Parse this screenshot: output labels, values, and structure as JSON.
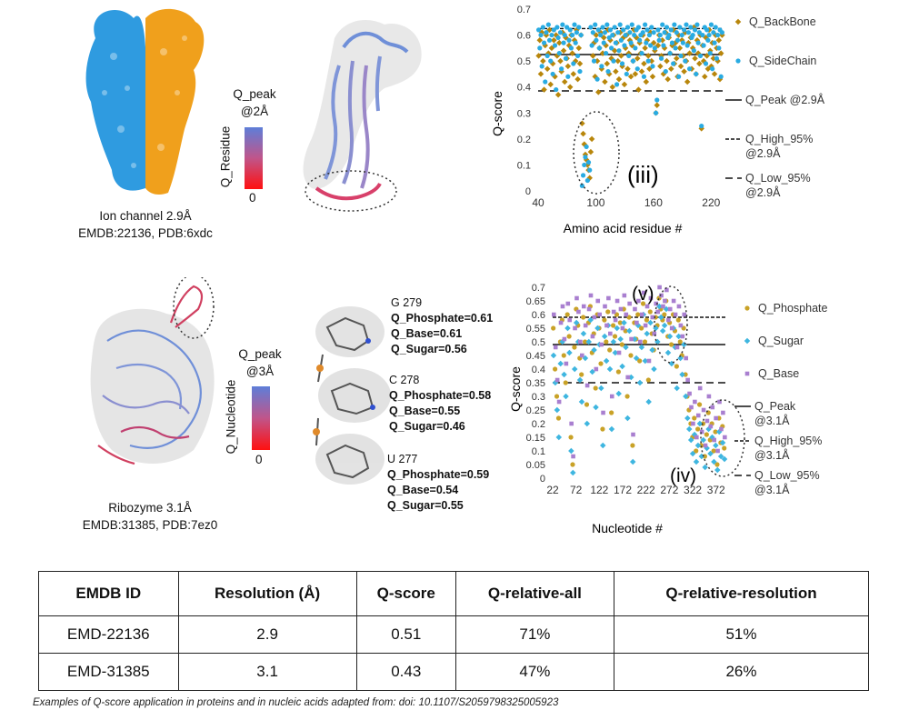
{
  "protein": {
    "caption_line1": "Ion channel 2.9Å",
    "caption_line2": "EMDB:22136, PDB:6xdc",
    "colorbar": {
      "title_line1": "Q_peak",
      "title_line2": "@2Å",
      "side_label": "Q_Residue",
      "min_label": "0"
    },
    "colors": {
      "chain_a": "#2f9be0",
      "chain_b": "#f0a01c"
    }
  },
  "rna": {
    "caption_line1": "Ribozyme 3.1Å",
    "caption_line2": "EMDB:31385, PDB:7ez0",
    "colorbar": {
      "title_line1": "Q_peak",
      "title_line2": "@3Å",
      "side_label": "Q_Nucleotide",
      "min_label": "0"
    },
    "nucleotides": [
      {
        "name": "G 279",
        "phosphate": "Q_Phosphate=0.61",
        "base": "Q_Base=0.61",
        "sugar": "Q_Sugar=0.56"
      },
      {
        "name": "C 278",
        "phosphate": "Q_Phosphate=0.58",
        "base": "Q_Base=0.55",
        "sugar": "Q_Sugar=0.46"
      },
      {
        "name": "U 277",
        "phosphate": "Q_Phosphate=0.59",
        "base": "Q_Base=0.54",
        "sugar": "Q_Sugar=0.55"
      }
    ]
  },
  "chart_data": [
    {
      "type": "scatter",
      "xlabel": "Amino acid residue #",
      "ylabel": "Q-score",
      "xlim": [
        40,
        232
      ],
      "ylim": [
        0,
        0.7
      ],
      "xticks": [
        40,
        100,
        160,
        220
      ],
      "yticks": [
        0,
        0.1,
        0.2,
        0.3,
        0.4,
        0.5,
        0.6,
        0.7
      ],
      "annotation": "(iii)",
      "legend_position": "right",
      "series": [
        {
          "name": "Q_BackBone",
          "color": "#b8860b",
          "marker": "diamond",
          "values": [
            0.52,
            0.58,
            0.45,
            0.61,
            0.5,
            0.39,
            0.56,
            0.6,
            0.47,
            0.53,
            0.62,
            0.41,
            0.55,
            0.49,
            0.58,
            0.44,
            0.6,
            0.52,
            0.37,
            0.57,
            0.5,
            0.46,
            0.61,
            0.54,
            0.42,
            0.59,
            0.51,
            0.48,
            0.56,
            0.4,
            0.6,
            0.53,
            0.45,
            0.58,
            0.5,
            0.62,
            0.43,
            0.55,
            0.49,
            0.6,
            0.26,
            0.22,
            0.18,
            0.14,
            0.12,
            0.1,
            0.08,
            0.05,
            0.15,
            0.2,
            0.52,
            0.57,
            0.44,
            0.6,
            0.5,
            0.38,
            0.55,
            0.61,
            0.47,
            0.53,
            0.59,
            0.42,
            0.56,
            0.49,
            0.62,
            0.45,
            0.58,
            0.51,
            0.4,
            0.6,
            0.54,
            0.46,
            0.57,
            0.5,
            0.43,
            0.61,
            0.52,
            0.48,
            0.59,
            0.41,
            0.55,
            0.6,
            0.47,
            0.53,
            0.58,
            0.44,
            0.56,
            0.5,
            0.62,
            0.45,
            0.59,
            0.51,
            0.39,
            0.57,
            0.53,
            0.46,
            0.6,
            0.49,
            0.55,
            0.42,
            0.58,
            0.52,
            0.47,
            0.61,
            0.5,
            0.44,
            0.57,
            0.54,
            0.3,
            0.33,
            0.56,
            0.6,
            0.48,
            0.52,
            0.58,
            0.45,
            0.55,
            0.61,
            0.5,
            0.43,
            0.59,
            0.53,
            0.47,
            0.56,
            0.62,
            0.49,
            0.57,
            0.51,
            0.44,
            0.6,
            0.55,
            0.48,
            0.58,
            0.52,
            0.46,
            0.61,
            0.5,
            0.42,
            0.57,
            0.53,
            0.59,
            0.47,
            0.55,
            0.63,
            0.51,
            0.45,
            0.58,
            0.53,
            0.49,
            0.6,
            0.24,
            0.56,
            0.5,
            0.44,
            0.59,
            0.52,
            0.47,
            0.62,
            0.54,
            0.48,
            0.57,
            0.51,
            0.45,
            0.6,
            0.55,
            0.5,
            0.58,
            0.43,
            0.53,
            0.6
          ]
        },
        {
          "name": "Q_SideChain",
          "color": "#29abe2",
          "marker": "circle",
          "values": [
            0.62,
            0.55,
            0.6,
            0.48,
            0.63,
            0.57,
            0.42,
            0.61,
            0.52,
            0.64,
            0.58,
            0.5,
            0.6,
            0.45,
            0.62,
            0.56,
            0.39,
            0.63,
            0.59,
            0.53,
            0.61,
            0.47,
            0.64,
            0.57,
            0.6,
            0.51,
            0.63,
            0.44,
            0.58,
            0.62,
            0.55,
            0.6,
            0.49,
            0.64,
            0.57,
            0.61,
            0.52,
            0.63,
            0.46,
            0.6,
            0.02,
            0.06,
            0.1,
            0.13,
            0.17,
            0.04,
            0.11,
            0.08,
            0.63,
            0.56,
            0.61,
            0.5,
            0.64,
            0.58,
            0.43,
            0.62,
            0.55,
            0.6,
            0.48,
            0.63,
            0.57,
            0.61,
            0.53,
            0.64,
            0.46,
            0.59,
            0.62,
            0.55,
            0.6,
            0.5,
            0.63,
            0.57,
            0.41,
            0.61,
            0.54,
            0.64,
            0.58,
            0.49,
            0.62,
            0.56,
            0.6,
            0.45,
            0.63,
            0.52,
            0.61,
            0.57,
            0.64,
            0.5,
            0.6,
            0.55,
            0.62,
            0.47,
            0.63,
            0.58,
            0.6,
            0.53,
            0.61,
            0.44,
            0.64,
            0.57,
            0.62,
            0.5,
            0.6,
            0.56,
            0.63,
            0.48,
            0.61,
            0.55,
            0.3,
            0.35,
            0.62,
            0.58,
            0.6,
            0.51,
            0.64,
            0.56,
            0.61,
            0.46,
            0.63,
            0.59,
            0.6,
            0.53,
            0.62,
            0.57,
            0.49,
            0.64,
            0.55,
            0.61,
            0.58,
            0.44,
            0.63,
            0.52,
            0.6,
            0.57,
            0.62,
            0.5,
            0.64,
            0.56,
            0.61,
            0.47,
            0.63,
            0.59,
            0.6,
            0.54,
            0.62,
            0.45,
            0.64,
            0.57,
            0.61,
            0.52,
            0.25,
            0.6,
            0.56,
            0.63,
            0.49,
            0.62,
            0.58,
            0.6,
            0.53,
            0.64,
            0.47,
            0.61,
            0.57,
            0.63,
            0.51,
            0.6,
            0.55,
            0.62,
            0.44,
            0.61
          ]
        }
      ],
      "reference_lines": [
        {
          "name": "Q_Peak @2.9Å",
          "label_line1": "Q_Peak @2.9Å",
          "label_line2": "",
          "value": 0.525,
          "style": "solid"
        },
        {
          "name": "Q_High_95% @2.9Å",
          "label_line1": "Q_High_95%",
          "label_line2": "@2.9Å",
          "value": 0.625,
          "style": "dotted"
        },
        {
          "name": "Q_Low_95% @2.9Å",
          "label_line1": "Q_Low_95%",
          "label_line2": "@2.9Å",
          "value": 0.385,
          "style": "dashed"
        }
      ]
    },
    {
      "type": "scatter",
      "xlabel": "Nucleotide #",
      "ylabel": "Q-score",
      "xlim": [
        22,
        392
      ],
      "ylim": [
        0,
        0.7
      ],
      "xticks": [
        22,
        72,
        122,
        172,
        222,
        272,
        322,
        372
      ],
      "yticks": [
        0,
        0.05,
        0.1,
        0.15,
        0.2,
        0.25,
        0.3,
        0.35,
        0.4,
        0.45,
        0.5,
        0.55,
        0.6,
        0.65,
        0.7
      ],
      "annotations": [
        "(v)",
        "(iv)"
      ],
      "legend_position": "right",
      "series": [
        {
          "name": "Q_Phosphate",
          "color": "#c9a227",
          "marker": "circle",
          "values": [
            0.55,
            0.4,
            0.3,
            0.22,
            0.5,
            0.58,
            0.45,
            0.35,
            0.6,
            0.52,
            0.15,
            0.05,
            0.48,
            0.62,
            0.56,
            0.44,
            0.38,
            0.59,
            0.5,
            0.27,
            0.57,
            0.63,
            0.46,
            0.53,
            0.33,
            0.6,
            0.55,
            0.42,
            0.18,
            0.58,
            0.5,
            0.61,
            0.47,
            0.24,
            0.56,
            0.52,
            0.6,
            0.39,
            0.57,
            0.49,
            0.62,
            0.54,
            0.3,
            0.59,
            0.45,
            0.12,
            0.57,
            0.51,
            0.6,
            0.43,
            0.55,
            0.64,
            0.5,
            0.58,
            0.36,
            0.61,
            0.53,
            0.47,
            0.59,
            0.56,
            0.66,
            0.62,
            0.58,
            0.6,
            0.65,
            0.52,
            0.57,
            0.49,
            0.6,
            0.54,
            0.41,
            0.58,
            0.5,
            0.45,
            0.55,
            0.38,
            0.3,
            0.25,
            0.2,
            0.15,
            0.22,
            0.1,
            0.18,
            0.27,
            0.12,
            0.2,
            0.08,
            0.16,
            0.24,
            0.14,
            0.2,
            0.1,
            0.17,
            0.05,
            0.22,
            0.13,
            0.19,
            0.11
          ]
        },
        {
          "name": "Q_Sugar",
          "color": "#3fb6e0",
          "marker": "diamond",
          "values": [
            0.45,
            0.35,
            0.25,
            0.15,
            0.42,
            0.5,
            0.38,
            0.3,
            0.55,
            0.46,
            0.1,
            0.02,
            0.4,
            0.57,
            0.5,
            0.36,
            0.28,
            0.53,
            0.44,
            0.2,
            0.5,
            0.58,
            0.39,
            0.47,
            0.26,
            0.55,
            0.49,
            0.33,
            0.12,
            0.52,
            0.43,
            0.56,
            0.4,
            0.18,
            0.5,
            0.46,
            0.55,
            0.31,
            0.51,
            0.41,
            0.57,
            0.48,
            0.22,
            0.54,
            0.37,
            0.06,
            0.51,
            0.44,
            0.56,
            0.35,
            0.48,
            0.6,
            0.43,
            0.53,
            0.28,
            0.57,
            0.47,
            0.4,
            0.55,
            0.5,
            0.63,
            0.59,
            0.54,
            0.56,
            0.62,
            0.46,
            0.52,
            0.42,
            0.55,
            0.48,
            0.33,
            0.52,
            0.44,
            0.38,
            0.49,
            0.3,
            0.22,
            0.18,
            0.14,
            0.09,
            0.16,
            0.06,
            0.12,
            0.2,
            0.08,
            0.14,
            0.04,
            0.11,
            0.18,
            0.09,
            0.15,
            0.06,
            0.12,
            0.03,
            0.17,
            0.08,
            0.13,
            0.07
          ]
        },
        {
          "name": "Q_Base",
          "color": "#a97fd0",
          "marker": "square",
          "values": [
            0.6,
            0.48,
            0.36,
            0.28,
            0.57,
            0.63,
            0.51,
            0.42,
            0.64,
            0.58,
            0.2,
            0.08,
            0.55,
            0.66,
            0.61,
            0.5,
            0.45,
            0.63,
            0.56,
            0.34,
            0.62,
            0.67,
            0.52,
            0.59,
            0.4,
            0.65,
            0.6,
            0.49,
            0.24,
            0.63,
            0.56,
            0.66,
            0.53,
            0.3,
            0.61,
            0.58,
            0.65,
            0.46,
            0.62,
            0.55,
            0.67,
            0.6,
            0.37,
            0.64,
            0.51,
            0.16,
            0.62,
            0.57,
            0.65,
            0.5,
            0.6,
            0.68,
            0.56,
            0.63,
            0.43,
            0.66,
            0.59,
            0.53,
            0.64,
            0.61,
            0.7,
            0.67,
            0.63,
            0.65,
            0.69,
            0.58,
            0.62,
            0.55,
            0.65,
            0.6,
            0.48,
            0.63,
            0.56,
            0.52,
            0.6,
            0.44,
            0.36,
            0.31,
            0.26,
            0.2,
            0.28,
            0.15,
            0.23,
            0.33,
            0.17,
            0.25,
            0.12,
            0.21,
            0.3,
            0.19,
            0.26,
            0.14,
            0.22,
            0.1,
            0.28,
            0.18,
            0.24,
            0.15
          ]
        }
      ],
      "reference_lines": [
        {
          "name": "Q_Peak @3.1Å",
          "label_line1": "Q_Peak",
          "label_line2": "@3.1Å",
          "value": 0.49,
          "style": "solid"
        },
        {
          "name": "Q_High_95% @3.1Å",
          "label_line1": "Q_High_95%",
          "label_line2": "@3.1Å",
          "value": 0.59,
          "style": "dotted"
        },
        {
          "name": "Q_Low_95% @3.1Å",
          "label_line1": "Q_Low_95%",
          "label_line2": "@3.1Å",
          "value": 0.35,
          "style": "dashed"
        }
      ]
    }
  ],
  "table": {
    "headers": [
      "EMDB ID",
      "Resolution (Å)",
      "Q-score",
      "Q-relative-all",
      "Q-relative-resolution"
    ],
    "rows": [
      [
        "EMD-22136",
        "2.9",
        "0.51",
        "71%",
        "51%"
      ],
      [
        "EMD-31385",
        "3.1",
        "0.43",
        "47%",
        "26%"
      ]
    ]
  },
  "footer": "Examples of Q-score application in proteins and in nucleic acids adapted from: doi: 10.1107/S2059798325005923"
}
